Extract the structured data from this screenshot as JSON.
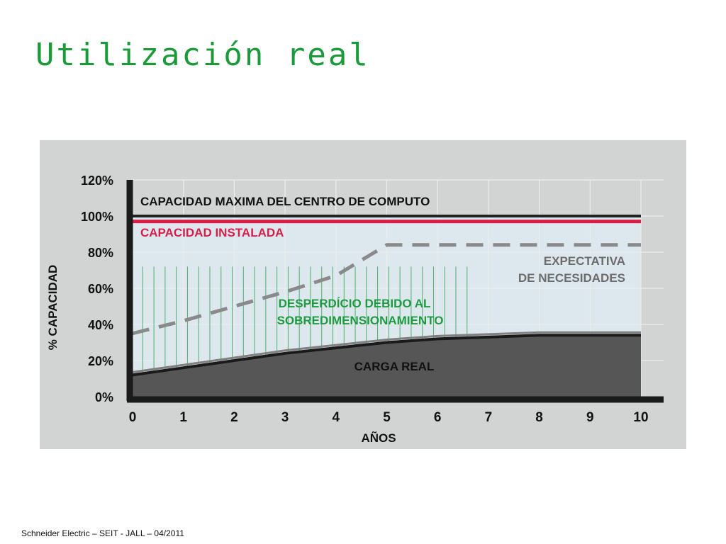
{
  "slide": {
    "title": "Utilización real",
    "footer": "Schneider Electric – SEIT - JALL – 04/2011"
  },
  "colors": {
    "title": "#1b9a3a",
    "panel_background": "#d2d4d3",
    "plot_fill": "#dde7ee",
    "max_capacity": "#222222",
    "installed_capacity": "#d61e47",
    "expectation": "#8a8a8a",
    "waste": "#2aa24a",
    "load_fill": "#565656",
    "load_line": "#1a1a1a"
  },
  "chart_data": {
    "type": "area",
    "xlabel": "AÑOS",
    "ylabel": "% CAPACIDAD",
    "xlim": [
      0,
      10
    ],
    "ylim": [
      0,
      120
    ],
    "x_ticks": [
      "0",
      "1",
      "2",
      "3",
      "4",
      "5",
      "6",
      "7",
      "8",
      "9",
      "10"
    ],
    "y_ticks": [
      "0%",
      "20%",
      "40%",
      "60%",
      "80%",
      "100%",
      "120%"
    ],
    "grid": true,
    "series": [
      {
        "name": "CAPACIDAD MAXIMA DEL CENTRO DE COMPUTO",
        "style": "solid-line",
        "x": [
          0,
          10
        ],
        "y": [
          100,
          100
        ]
      },
      {
        "name": "CAPACIDAD INSTALADA",
        "style": "solid-line",
        "x": [
          0,
          10
        ],
        "y": [
          97,
          97
        ]
      },
      {
        "name": "EXPECTATIVA DE NECESIDADES",
        "style": "dashed-line",
        "x": [
          0,
          1,
          2,
          3,
          4,
          5,
          6,
          7,
          8,
          9,
          10
        ],
        "y": [
          35,
          42,
          50,
          58,
          67,
          84,
          84,
          84,
          84,
          84,
          84
        ]
      },
      {
        "name": "CARGA REAL",
        "style": "filled-area",
        "x": [
          0,
          1,
          2,
          3,
          4,
          5,
          6,
          7,
          8,
          9,
          10
        ],
        "y": [
          12,
          16,
          20,
          24,
          27,
          30,
          32,
          33,
          34,
          34,
          34
        ]
      }
    ],
    "annotations": {
      "max_capacity": "CAPACIDAD MAXIMA DEL CENTRO DE COMPUTO",
      "installed_capacity": "CAPACIDAD INSTALADA",
      "expectation_line1": "EXPECTATIVA",
      "expectation_line2": "DE NECESIDADES",
      "waste_line1": "DESPERDÍCIO DEBIDO AL",
      "waste_line2": "SOBREDIMENSIONAMIENTO",
      "load": "CARGA REAL"
    }
  }
}
